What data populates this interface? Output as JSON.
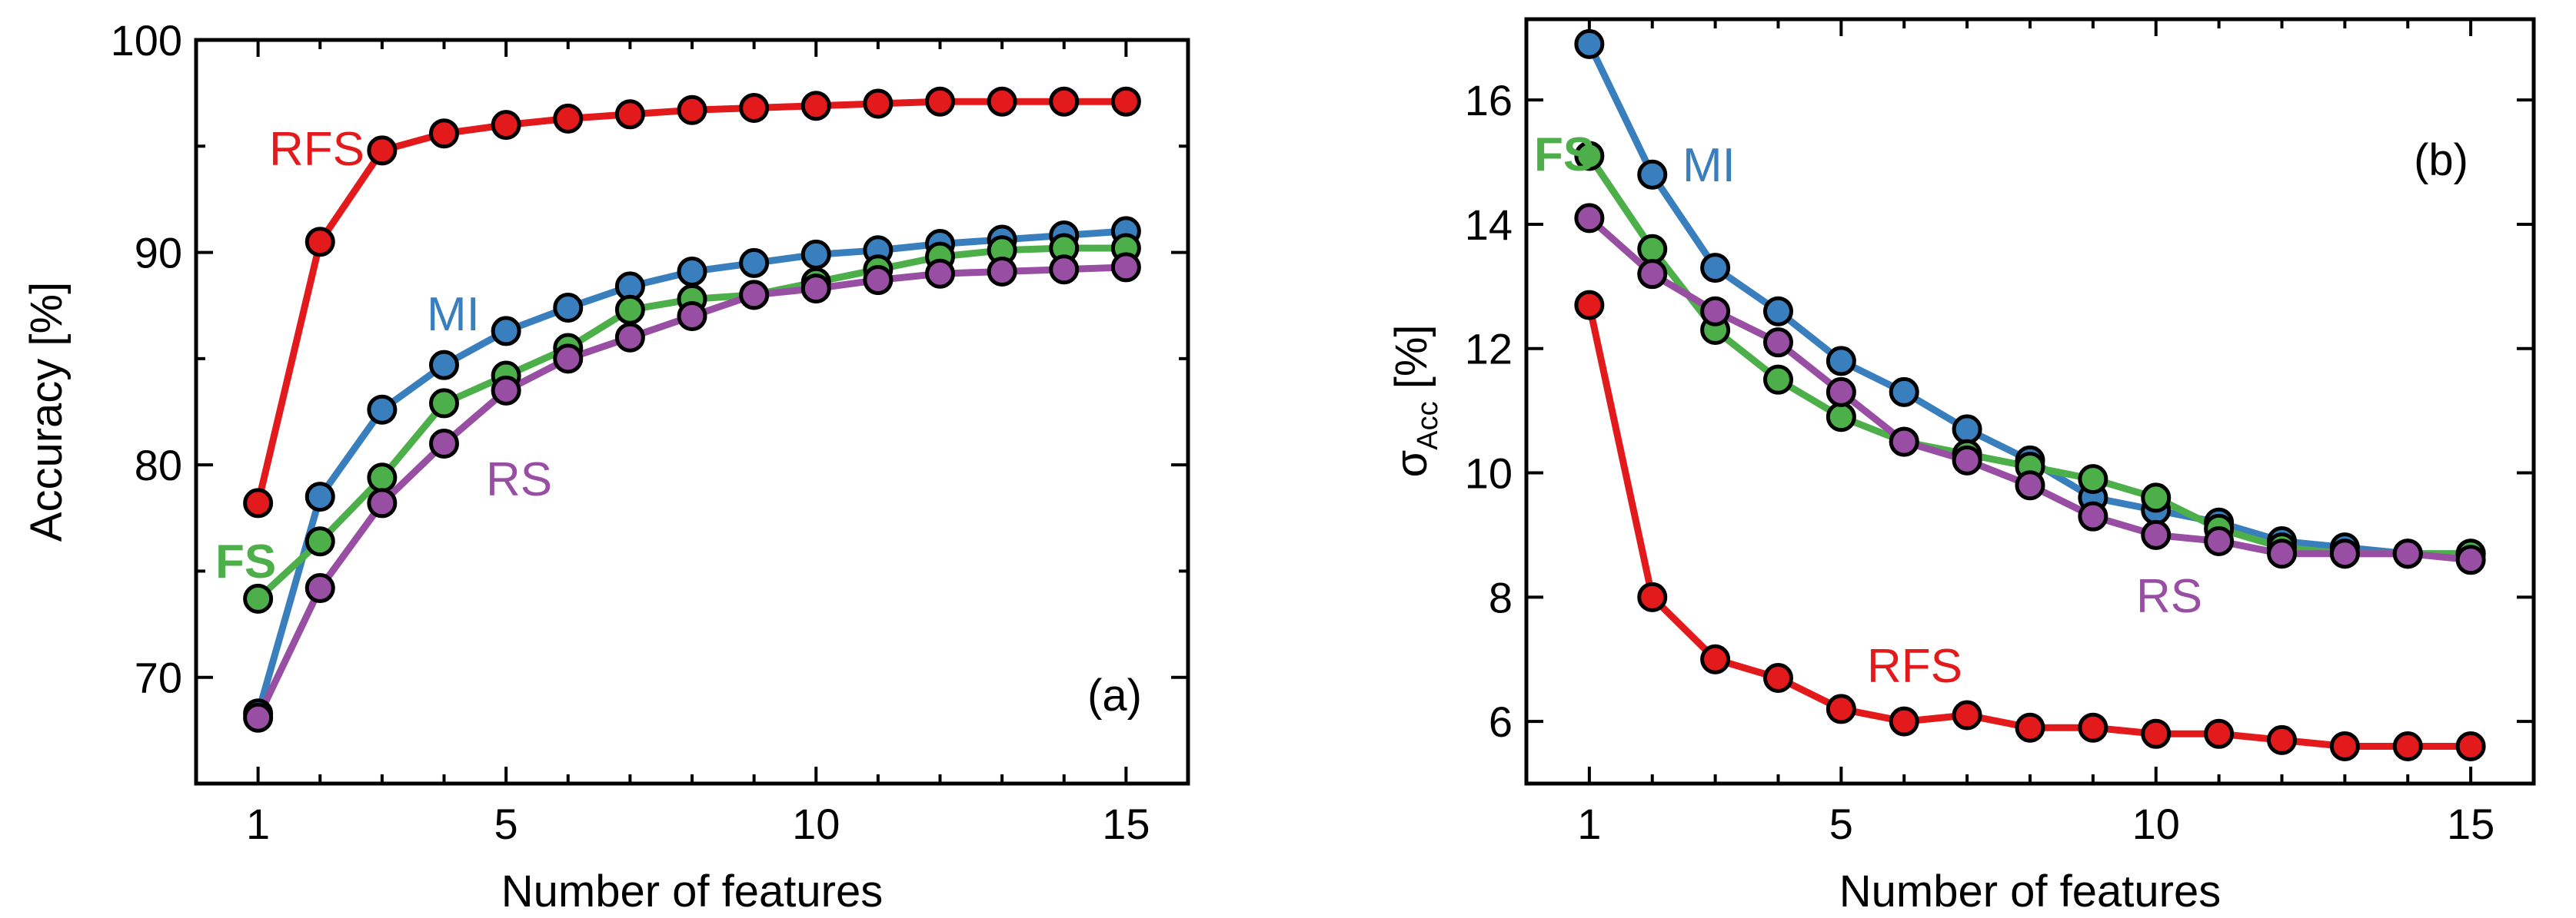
{
  "chart_data": [
    {
      "type": "line",
      "panel_label": "(a)",
      "xlabel": "Number of features",
      "ylabel": "Accuracy [%]",
      "xlim": [
        0,
        16
      ],
      "ylim": [
        65,
        100
      ],
      "xticks": [
        1,
        5,
        10,
        15
      ],
      "yticks": [
        70,
        80,
        90,
        100
      ],
      "x": [
        1,
        2,
        3,
        4,
        5,
        6,
        7,
        8,
        9,
        10,
        11,
        12,
        13,
        14,
        15
      ],
      "grid": false,
      "series": [
        {
          "name": "RFS",
          "color": "#e31a1c",
          "values": [
            78.2,
            90.5,
            94.8,
            95.6,
            96.0,
            96.3,
            96.5,
            96.7,
            96.8,
            96.9,
            97.0,
            97.1,
            97.1,
            97.1,
            97.1
          ]
        },
        {
          "name": "MI",
          "color": "#3a7fbd",
          "values": [
            68.3,
            78.5,
            82.6,
            84.7,
            86.3,
            87.4,
            88.4,
            89.1,
            89.5,
            89.9,
            90.1,
            90.4,
            90.6,
            90.8,
            91.0
          ]
        },
        {
          "name": "FS",
          "color": "#4daf4a",
          "values": [
            73.7,
            76.4,
            79.4,
            82.9,
            84.2,
            85.5,
            87.3,
            87.8,
            88.0,
            88.6,
            89.2,
            89.8,
            90.1,
            90.2,
            90.2
          ]
        },
        {
          "name": "RS",
          "color": "#984ea3",
          "values": [
            68.1,
            74.2,
            78.2,
            81.0,
            83.5,
            85.0,
            86.0,
            87.0,
            88.0,
            88.3,
            88.7,
            89.0,
            89.1,
            89.2,
            89.3
          ]
        }
      ]
    },
    {
      "type": "line",
      "panel_label": "(b)",
      "xlabel": "Number of features",
      "ylabel_main": "σ",
      "ylabel_sub": "Acc",
      "ylabel_unit": " [%]",
      "xlim": [
        0,
        16
      ],
      "ylim": [
        5,
        17.3
      ],
      "xticks": [
        1,
        5,
        10,
        15
      ],
      "yticks": [
        6,
        8,
        10,
        12,
        14,
        16
      ],
      "x": [
        1,
        2,
        3,
        4,
        5,
        6,
        7,
        8,
        9,
        10,
        11,
        12,
        13,
        14,
        15
      ],
      "grid": false,
      "series": [
        {
          "name": "MI",
          "color": "#3a7fbd",
          "values": [
            16.9,
            14.8,
            13.3,
            12.6,
            11.8,
            11.3,
            10.7,
            10.2,
            9.6,
            9.4,
            9.2,
            8.9,
            8.8,
            8.7,
            8.7
          ]
        },
        {
          "name": "FS",
          "color": "#4daf4a",
          "values": [
            15.1,
            13.6,
            12.3,
            11.5,
            10.9,
            10.5,
            10.3,
            10.1,
            9.9,
            9.6,
            9.1,
            8.8,
            8.7,
            8.7,
            8.7
          ]
        },
        {
          "name": "RS",
          "color": "#984ea3",
          "values": [
            14.1,
            13.2,
            12.6,
            12.1,
            11.3,
            10.5,
            10.2,
            9.8,
            9.3,
            9.0,
            8.9,
            8.7,
            8.7,
            8.7,
            8.6
          ]
        },
        {
          "name": "RFS",
          "color": "#e31a1c",
          "values": [
            12.7,
            8.0,
            7.0,
            6.7,
            6.2,
            6.0,
            6.1,
            5.9,
            5.9,
            5.8,
            5.8,
            5.7,
            5.6,
            5.6,
            5.6
          ]
        }
      ]
    }
  ]
}
